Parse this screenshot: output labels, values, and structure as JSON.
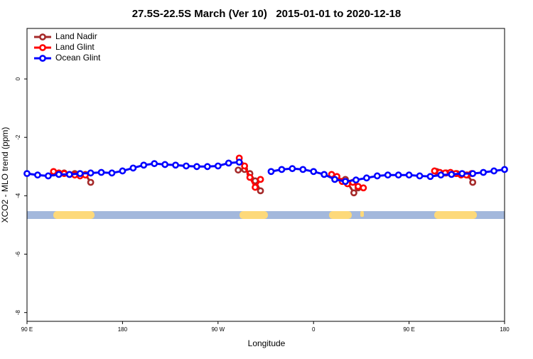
{
  "chart_data": {
    "type": "line",
    "title": "27.5S-22.5S March (Ver 10)   2015-01-01 to 2020-12-18",
    "x_label": "Longitude",
    "y_label": "XCO2 - MLO trend (ppm)",
    "xlim": [
      90,
      540
    ],
    "ylim": [
      -8.3,
      1.73
    ],
    "xticks": [
      {
        "value": 90,
        "label": "90 E"
      },
      {
        "value": 180,
        "label": "180"
      },
      {
        "value": 270,
        "label": "90 W"
      },
      {
        "value": 360,
        "label": "0"
      },
      {
        "value": 450,
        "label": "90 E"
      },
      {
        "value": 540,
        "label": "180"
      }
    ],
    "yticks": [
      0,
      -2,
      -4,
      -6,
      -8
    ],
    "legend": "top-left",
    "series": [
      {
        "name": "Land Nadir",
        "color": "#a52a2a",
        "x": [
          115,
          125,
          135,
          145,
          150,
          200,
          289,
          295,
          300,
          305,
          310,
          350,
          380,
          390,
          398,
          402,
          440,
          476,
          485,
          495,
          505,
          510
        ],
        "values": [
          -3.22,
          -3.22,
          -3.24,
          -3.27,
          -3.54,
          null,
          -3.12,
          -3.1,
          -3.24,
          -3.49,
          -3.83,
          null,
          -3.41,
          -3.44,
          -3.9,
          -3.73,
          null,
          -3.17,
          -3.22,
          -3.24,
          -3.29,
          -3.54
        ]
      },
      {
        "name": "Land Glint",
        "color": "#ff0000",
        "x": [
          115,
          120,
          125,
          130,
          135,
          140,
          145,
          200,
          290,
          295,
          300,
          305,
          310,
          350,
          377,
          382,
          387,
          392,
          397,
          402,
          407,
          440,
          474,
          479,
          484,
          489,
          494,
          499,
          504,
          509
        ],
        "values": [
          -3.17,
          -3.22,
          -3.24,
          -3.27,
          -3.29,
          -3.32,
          -3.29,
          null,
          -2.71,
          -2.98,
          -3.37,
          -3.71,
          -3.44,
          null,
          -3.27,
          -3.34,
          -3.51,
          -3.59,
          -3.54,
          -3.68,
          -3.73,
          null,
          -3.15,
          -3.2,
          -3.22,
          -3.2,
          -3.24,
          -3.29,
          -3.29,
          -3.24
        ]
      },
      {
        "name": "Ocean Glint",
        "color": "#0000ff",
        "x": [
          90,
          100,
          110,
          120,
          130,
          140,
          150,
          160,
          170,
          180,
          190,
          200,
          210,
          220,
          230,
          240,
          250,
          260,
          270,
          280,
          290,
          300,
          310,
          320,
          330,
          340,
          350,
          360,
          370,
          380,
          390,
          400,
          410,
          420,
          430,
          440,
          450,
          460,
          470,
          480,
          490,
          500,
          510,
          520,
          530,
          540
        ],
        "values": [
          -3.24,
          -3.29,
          -3.32,
          -3.27,
          -3.27,
          -3.24,
          -3.22,
          -3.2,
          -3.22,
          -3.15,
          -3.05,
          -2.95,
          -2.9,
          -2.93,
          -2.95,
          -2.98,
          -3.0,
          -3.0,
          -2.98,
          -2.88,
          -2.85,
          null,
          null,
          -3.17,
          -3.1,
          -3.07,
          -3.1,
          -3.17,
          -3.27,
          -3.44,
          -3.51,
          -3.46,
          -3.39,
          -3.32,
          -3.29,
          -3.29,
          -3.29,
          -3.32,
          -3.34,
          -3.29,
          -3.27,
          -3.24,
          -3.24,
          -3.2,
          -3.15,
          -3.1
        ]
      }
    ]
  }
}
